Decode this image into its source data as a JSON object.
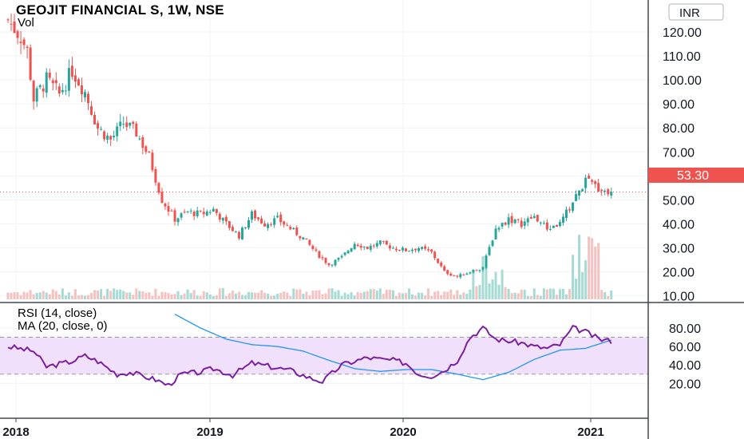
{
  "header": {
    "title": "GEOJIT FINANCIAL S, 1W, NSE",
    "volume_label": "Vol",
    "currency": "INR"
  },
  "price_badge": {
    "value": "53.30",
    "color": "#ef5350"
  },
  "rsi_legend": {
    "line1": "RSI (14, close)",
    "line2": "MA (20, close, 0)"
  },
  "colors": {
    "up": "#26a69a",
    "down": "#ef5350",
    "up_vol": "#a5dbd3",
    "down_vol": "#f6c2c0",
    "rsi": "#7b1fa2",
    "rsi_ma": "#2196f3",
    "rsi_band": "#f1e0fb",
    "grid": "#f0f3fa"
  },
  "chart_data": [
    {
      "type": "candlestick",
      "title": "GEOJIT FINANCIAL S, 1W, NSE",
      "y_axis_labels": [
        "120.00",
        "110.00",
        "100.00",
        "90.00",
        "80.00",
        "70.00",
        "60.00",
        "50.00",
        "40.00",
        "30.00",
        "20.00",
        "10.00"
      ],
      "x_axis_labels": [
        "2018",
        "2019",
        "2020",
        "2021"
      ],
      "ylim": [
        0,
        125
      ],
      "last_price": 53.3,
      "start_date": "2017-12-25",
      "weeks": 163,
      "close_anchors": [
        [
          0,
          125
        ],
        [
          4,
          118
        ],
        [
          6,
          112
        ],
        [
          8,
          92
        ],
        [
          12,
          100
        ],
        [
          16,
          94
        ],
        [
          20,
          104
        ],
        [
          24,
          95
        ],
        [
          28,
          80
        ],
        [
          32,
          75
        ],
        [
          36,
          82
        ],
        [
          40,
          78
        ],
        [
          44,
          68
        ],
        [
          48,
          50
        ],
        [
          52,
          42
        ],
        [
          56,
          45
        ],
        [
          60,
          44
        ],
        [
          64,
          46
        ],
        [
          68,
          40
        ],
        [
          72,
          35
        ],
        [
          76,
          44
        ],
        [
          80,
          40
        ],
        [
          84,
          42
        ],
        [
          88,
          38
        ],
        [
          92,
          34
        ],
        [
          96,
          28
        ],
        [
          100,
          23
        ],
        [
          104,
          26
        ],
        [
          108,
          32
        ],
        [
          112,
          30
        ],
        [
          116,
          32
        ],
        [
          120,
          30
        ],
        [
          124,
          29
        ],
        [
          128,
          30
        ],
        [
          132,
          28
        ],
        [
          136,
          20
        ],
        [
          140,
          18
        ],
        [
          144,
          20
        ],
        [
          148,
          22
        ],
        [
          152,
          38
        ],
        [
          156,
          42
        ],
        [
          160,
          40
        ],
        [
          164,
          43
        ],
        [
          168,
          38
        ],
        [
          172,
          40
        ],
        [
          176,
          49
        ],
        [
          180,
          58
        ],
        [
          184,
          55
        ],
        [
          188,
          53.3
        ]
      ],
      "volume": "relative bars, spikes near 2020-06 and 2020-12",
      "grid": true
    },
    {
      "type": "line",
      "title": "RSI (14, close)",
      "series": [
        {
          "name": "RSI (14, close)",
          "anchors": [
            [
              0,
              60
            ],
            [
              8,
              55
            ],
            [
              12,
              38
            ],
            [
              20,
              44
            ],
            [
              24,
              50
            ],
            [
              28,
              44
            ],
            [
              34,
              30
            ],
            [
              38,
              32
            ],
            [
              46,
              24
            ],
            [
              50,
              18
            ],
            [
              54,
              30
            ],
            [
              60,
              32
            ],
            [
              64,
              36
            ],
            [
              70,
              29
            ],
            [
              76,
              42
            ],
            [
              82,
              38
            ],
            [
              88,
              34
            ],
            [
              94,
              26
            ],
            [
              98,
              22
            ],
            [
              104,
              40
            ],
            [
              108,
              44
            ],
            [
              112,
              48
            ],
            [
              116,
              46
            ],
            [
              120,
              45
            ],
            [
              124,
              42
            ],
            [
              128,
              30
            ],
            [
              132,
              28
            ],
            [
              136,
              34
            ],
            [
              140,
              45
            ],
            [
              144,
              70
            ],
            [
              148,
              80
            ],
            [
              152,
              68
            ],
            [
              156,
              66
            ],
            [
              160,
              64
            ],
            [
              164,
              60
            ],
            [
              168,
              58
            ],
            [
              172,
              62
            ],
            [
              176,
              80
            ],
            [
              180,
              76
            ],
            [
              184,
              68
            ],
            [
              188,
              66
            ]
          ]
        },
        {
          "name": "MA (20, close, 0)",
          "anchors": [
            [
              52,
              95
            ],
            [
              60,
              80
            ],
            [
              68,
              68
            ],
            [
              76,
              62
            ],
            [
              84,
              60
            ],
            [
              92,
              55
            ],
            [
              100,
              45
            ],
            [
              108,
              36
            ],
            [
              116,
              33
            ],
            [
              124,
              35
            ],
            [
              132,
              35
            ],
            [
              140,
              30
            ],
            [
              148,
              24
            ],
            [
              156,
              32
            ],
            [
              164,
              46
            ],
            [
              172,
              56
            ],
            [
              180,
              58
            ],
            [
              188,
              67
            ]
          ]
        }
      ],
      "y_axis_labels": [
        "80.00",
        "60.00",
        "40.00",
        "20.00"
      ],
      "ylim": [
        10,
        95
      ],
      "band": [
        30,
        70
      ],
      "grid": true
    }
  ]
}
